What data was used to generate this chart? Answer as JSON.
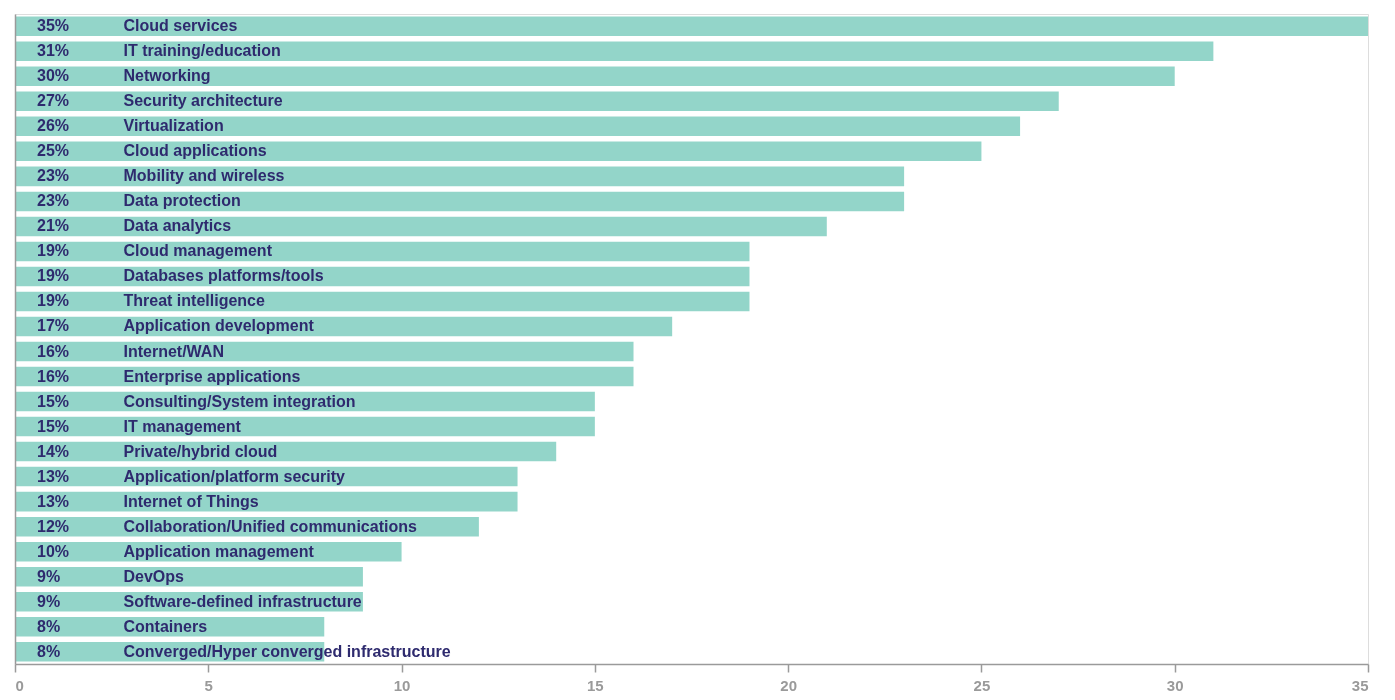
{
  "chart_data": {
    "type": "bar",
    "orientation": "horizontal",
    "categories": [
      "Cloud services",
      "IT training/education",
      "Networking",
      "Security architecture",
      "Virtualization",
      "Cloud applications",
      "Mobility and wireless",
      "Data protection",
      "Data analytics",
      "Cloud management",
      "Databases platforms/tools",
      "Threat intelligence",
      "Application development",
      "Internet/WAN",
      "Enterprise applications",
      "Consulting/System integration",
      "IT management",
      "Private/hybrid cloud",
      "Application/platform security",
      "Internet of Things",
      "Collaboration/Unified communications",
      "Application management",
      "DevOps",
      "Software-defined infrastructure",
      "Containers",
      "Converged/Hyper converged infrastructure"
    ],
    "values": [
      35,
      31,
      30,
      27,
      26,
      25,
      23,
      23,
      21,
      19,
      19,
      19,
      17,
      16,
      16,
      15,
      15,
      14,
      13,
      13,
      12,
      10,
      9,
      9,
      8,
      8
    ],
    "value_labels": [
      "35%",
      "31%",
      "30%",
      "27%",
      "26%",
      "25%",
      "23%",
      "23%",
      "21%",
      "19%",
      "19%",
      "19%",
      "17%",
      "16%",
      "16%",
      "15%",
      "15%",
      "14%",
      "13%",
      "13%",
      "12%",
      "10%",
      "9%",
      "9%",
      "8%",
      "8%"
    ],
    "color": "#93d5c9",
    "xlim": [
      0,
      35
    ],
    "xticks": [
      0,
      5,
      10,
      15,
      20,
      25,
      30,
      35
    ]
  }
}
